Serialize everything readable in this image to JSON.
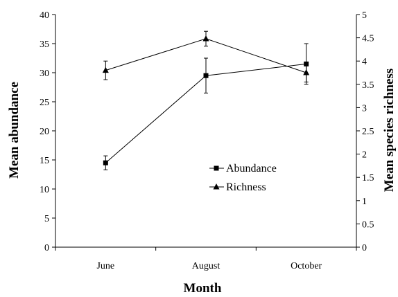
{
  "chart_data": {
    "type": "line",
    "categories": [
      "June",
      "August",
      "October"
    ],
    "xlabel": "Month",
    "ylabel": "Mean abundance",
    "y2label": "Mean species richness",
    "ylim": [
      0,
      40
    ],
    "y2lim": [
      0,
      5
    ],
    "yticks": [
      "0",
      "5",
      "10",
      "15",
      "20",
      "25",
      "30",
      "35",
      "40"
    ],
    "y2ticks": [
      "0",
      "0.5",
      "1",
      "1.5",
      "2",
      "2.5",
      "3",
      "3.5",
      "4",
      "4.5",
      "5"
    ],
    "grid": false,
    "legend_position": "center-right",
    "series": [
      {
        "name": "Abundance",
        "axis": "left",
        "marker": "square",
        "values": [
          14.5,
          29.5,
          31.5
        ],
        "errors": [
          1.2,
          3.0,
          3.5
        ]
      },
      {
        "name": "Richness",
        "axis": "right",
        "marker": "triangle",
        "values": [
          3.8,
          4.48,
          3.75
        ],
        "errors": [
          0.2,
          0.16,
          0.2
        ]
      }
    ]
  }
}
